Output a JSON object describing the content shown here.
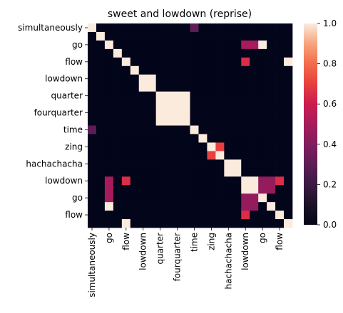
{
  "chart_data": {
    "type": "heatmap",
    "title": "sweet and lowdown (reprise)",
    "xlabel": "",
    "ylabel": "",
    "row_labels": [
      "simultaneously",
      "",
      "go",
      "",
      "flow",
      "",
      "lowdown",
      "",
      "quarter",
      "",
      "fourquarter",
      "",
      "time",
      "",
      "zing",
      "",
      "hachachacha",
      "",
      "lowdown",
      "",
      "go",
      "",
      "flow",
      ""
    ],
    "col_labels": [
      "simultaneously",
      "",
      "go",
      "",
      "flow",
      "",
      "lowdown",
      "",
      "quarter",
      "",
      "fourquarter",
      "",
      "time",
      "",
      "zing",
      "",
      "hachachacha",
      "",
      "lowdown",
      "",
      "go",
      "",
      "flow",
      ""
    ],
    "matrix": [
      [
        1,
        0,
        0,
        0,
        0,
        0,
        0,
        0,
        0,
        0,
        0,
        0,
        0,
        0,
        0,
        0,
        0,
        0,
        0,
        0,
        0,
        0,
        0,
        0
      ],
      [
        0,
        1,
        0,
        0,
        0,
        0,
        0,
        0,
        0,
        0,
        0,
        0,
        0,
        0,
        0,
        0,
        0,
        0,
        0,
        0,
        0,
        0,
        0,
        0
      ],
      [
        0,
        0,
        1,
        0,
        0,
        0,
        0,
        0,
        0,
        0,
        0,
        0,
        0,
        0,
        0,
        0,
        0,
        0,
        0,
        0,
        0,
        0,
        0,
        0
      ],
      [
        0,
        0,
        0,
        1,
        0,
        0,
        0,
        0,
        0,
        0,
        0,
        0,
        0,
        0,
        0,
        0,
        0,
        0,
        0,
        0,
        0,
        0,
        0,
        0
      ],
      [
        0,
        0,
        0,
        0,
        1,
        0,
        0,
        0,
        0,
        0,
        0,
        0,
        0,
        0,
        0,
        0,
        0,
        0,
        0,
        0,
        0,
        0,
        0,
        0
      ],
      [
        0,
        0,
        0,
        0,
        0,
        1,
        0,
        0,
        0,
        0,
        0,
        0,
        0,
        0,
        0,
        0,
        0,
        0,
        0,
        0,
        0,
        0,
        0,
        0
      ],
      [
        0,
        0,
        0,
        0,
        0,
        0,
        1,
        0,
        0,
        0,
        0,
        0,
        0,
        0,
        0,
        0,
        0,
        0,
        0,
        0,
        0,
        0,
        0,
        0
      ],
      [
        0,
        0,
        0,
        0,
        0,
        0,
        0,
        1,
        0,
        0,
        0,
        0,
        0,
        0,
        0,
        0,
        0,
        0,
        0,
        0,
        0,
        0,
        0,
        0
      ],
      [
        0,
        0,
        0,
        0,
        0,
        0,
        0,
        0,
        1,
        0,
        0,
        0,
        0,
        0,
        0,
        0,
        0,
        0,
        0,
        0,
        0,
        0,
        0,
        0
      ],
      [
        0,
        0,
        0,
        0,
        0,
        0,
        0,
        0,
        0,
        1,
        0,
        0,
        0,
        0,
        0,
        0,
        0,
        0,
        0,
        0,
        0,
        0,
        0,
        0
      ],
      [
        0,
        0,
        0,
        0,
        0,
        0,
        0,
        0,
        0,
        0,
        1,
        0,
        0,
        0,
        0,
        0,
        0,
        0,
        0,
        0,
        0,
        0,
        0,
        0
      ],
      [
        0,
        0,
        0,
        0,
        0,
        0,
        0,
        0,
        0,
        0,
        0,
        1,
        0,
        0,
        0,
        0,
        0,
        0,
        0,
        0,
        0,
        0,
        0,
        0
      ],
      [
        0,
        0,
        0,
        0,
        0,
        0,
        0,
        0,
        0,
        0,
        0,
        0,
        1,
        0,
        0,
        0,
        0,
        0,
        0,
        0,
        0,
        0,
        0,
        0
      ],
      [
        0,
        0,
        0,
        0,
        0,
        0,
        0,
        0,
        0,
        0,
        0,
        0,
        0,
        1,
        0,
        0,
        0,
        0,
        0,
        0,
        0,
        0,
        0,
        0
      ],
      [
        0,
        0,
        0,
        0,
        0,
        0,
        0,
        0,
        0,
        0,
        0,
        0,
        0,
        0,
        1,
        0,
        0,
        0,
        0,
        0,
        0,
        0,
        0,
        0
      ],
      [
        0,
        0,
        0,
        0,
        0,
        0,
        0,
        0,
        0,
        0,
        0,
        0,
        0,
        0,
        0,
        1,
        0,
        0,
        0,
        0,
        0,
        0,
        0,
        0
      ],
      [
        0,
        0,
        0,
        0,
        0,
        0,
        0,
        0,
        0,
        0,
        0,
        0,
        0,
        0,
        0,
        0,
        1,
        0,
        0,
        0,
        0,
        0,
        0,
        0
      ],
      [
        0,
        0,
        0,
        0,
        0,
        0,
        0,
        0,
        0,
        0,
        0,
        0,
        0,
        0,
        0,
        0,
        0,
        1,
        0,
        0,
        0,
        0,
        0,
        0
      ],
      [
        0,
        0,
        0,
        0,
        0,
        0,
        0,
        0,
        0,
        0,
        0,
        0,
        0,
        0,
        0,
        0,
        0,
        0,
        1,
        0,
        0,
        0,
        0,
        0
      ],
      [
        0,
        0,
        0,
        0,
        0,
        0,
        0,
        0,
        0,
        0,
        0,
        0,
        0,
        0,
        0,
        0,
        0,
        0,
        0,
        1,
        0,
        0,
        0,
        0
      ],
      [
        0,
        0,
        0,
        0,
        0,
        0,
        0,
        0,
        0,
        0,
        0,
        0,
        0,
        0,
        0,
        0,
        0,
        0,
        0,
        0,
        1,
        0,
        0,
        0
      ],
      [
        0,
        0,
        0,
        0,
        0,
        0,
        0,
        0,
        0,
        0,
        0,
        0,
        0,
        0,
        0,
        0,
        0,
        0,
        0,
        0,
        0,
        1,
        0,
        0
      ],
      [
        0,
        0,
        0,
        0,
        0,
        0,
        0,
        0,
        0,
        0,
        0,
        0,
        0,
        0,
        0,
        0,
        0,
        0,
        0,
        0,
        0,
        0,
        1,
        0
      ],
      [
        0,
        0,
        0,
        0,
        0,
        0,
        0,
        0,
        0,
        0,
        0,
        0,
        0,
        0,
        0,
        0,
        0,
        0,
        0,
        0,
        0,
        0,
        0,
        1
      ]
    ],
    "extra_cells": [
      {
        "r": 0,
        "c": 12,
        "v": 0.3
      },
      {
        "r": 12,
        "c": 0,
        "v": 0.3
      },
      {
        "r": 2,
        "c": 18,
        "v": 0.5
      },
      {
        "r": 2,
        "c": 19,
        "v": 0.5
      },
      {
        "r": 18,
        "c": 2,
        "v": 0.5
      },
      {
        "r": 19,
        "c": 2,
        "v": 0.5
      },
      {
        "r": 4,
        "c": 18,
        "v": 0.65
      },
      {
        "r": 18,
        "c": 4,
        "v": 0.65
      },
      {
        "r": 4,
        "c": 23,
        "v": 1
      },
      {
        "r": 23,
        "c": 4,
        "v": 1
      },
      {
        "r": 6,
        "c": 7,
        "v": 1
      },
      {
        "r": 7,
        "c": 6,
        "v": 1
      },
      {
        "r": 8,
        "c": 9,
        "v": 1
      },
      {
        "r": 8,
        "c": 10,
        "v": 1
      },
      {
        "r": 8,
        "c": 11,
        "v": 1
      },
      {
        "r": 9,
        "c": 8,
        "v": 1
      },
      {
        "r": 9,
        "c": 10,
        "v": 1
      },
      {
        "r": 9,
        "c": 11,
        "v": 1
      },
      {
        "r": 10,
        "c": 8,
        "v": 1
      },
      {
        "r": 10,
        "c": 9,
        "v": 1
      },
      {
        "r": 10,
        "c": 11,
        "v": 1
      },
      {
        "r": 11,
        "c": 8,
        "v": 1
      },
      {
        "r": 11,
        "c": 9,
        "v": 1
      },
      {
        "r": 11,
        "c": 10,
        "v": 1
      },
      {
        "r": 14,
        "c": 15,
        "v": 0.7
      },
      {
        "r": 15,
        "c": 14,
        "v": 0.7
      },
      {
        "r": 16,
        "c": 17,
        "v": 1
      },
      {
        "r": 17,
        "c": 16,
        "v": 1
      },
      {
        "r": 18,
        "c": 19,
        "v": 1
      },
      {
        "r": 19,
        "c": 18,
        "v": 1
      },
      {
        "r": 18,
        "c": 20,
        "v": 0.45
      },
      {
        "r": 20,
        "c": 18,
        "v": 0.45
      },
      {
        "r": 18,
        "c": 21,
        "v": 0.45
      },
      {
        "r": 21,
        "c": 18,
        "v": 0.45
      },
      {
        "r": 19,
        "c": 20,
        "v": 0.45
      },
      {
        "r": 20,
        "c": 19,
        "v": 0.45
      },
      {
        "r": 19,
        "c": 21,
        "v": 0.45
      },
      {
        "r": 21,
        "c": 19,
        "v": 0.45
      },
      {
        "r": 20,
        "c": 2,
        "v": 0.5
      },
      {
        "r": 2,
        "c": 20,
        "v": 1
      },
      {
        "r": 21,
        "c": 2,
        "v": 1
      },
      {
        "r": 22,
        "c": 18,
        "v": 0.65
      },
      {
        "r": 18,
        "c": 22,
        "v": 0.65
      }
    ],
    "colorbar": {
      "ticks": [
        0.0,
        0.2,
        0.4,
        0.6,
        0.8,
        1.0
      ],
      "tick_labels": [
        "0.0",
        "0.2",
        "0.4",
        "0.6",
        "0.8",
        "1.0"
      ],
      "vmin": 0.0,
      "vmax": 1.0
    }
  }
}
